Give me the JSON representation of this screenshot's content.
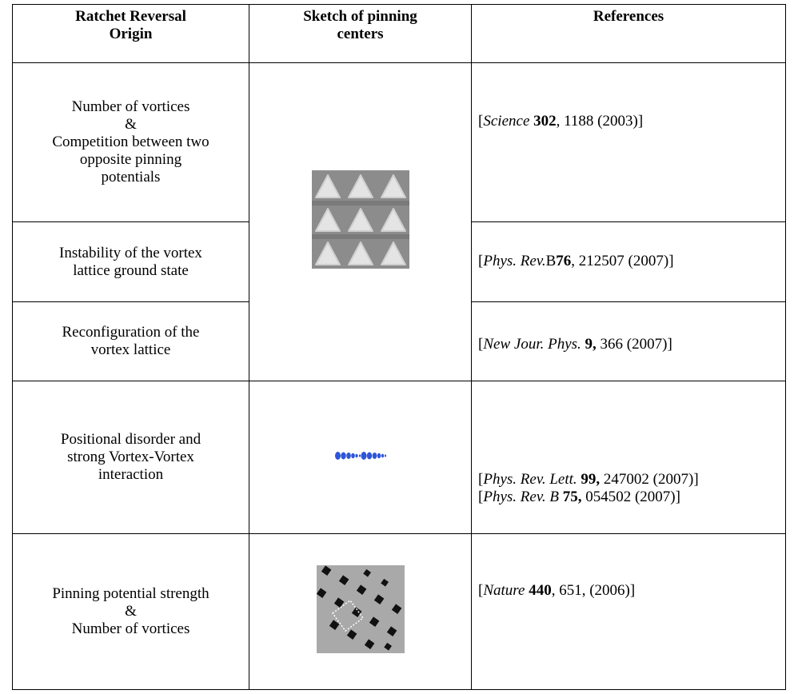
{
  "table": {
    "header": [
      [
        "Ratchet Reversal",
        "Origin"
      ],
      [
        "Sketch of pinning",
        "centers"
      ],
      [
        "References"
      ]
    ],
    "rows": [
      {
        "origin": [
          "Number of vortices",
          "&",
          "Competition between two",
          "opposite pinning",
          "potentials"
        ],
        "refs": [
          [
            {
              "text": "[",
              "style": "normal"
            },
            {
              "text": "Science",
              "style": "italic"
            },
            {
              "text": " 302",
              "style": "bold"
            },
            {
              "text": ", 1188 (2003)]",
              "style": "normal"
            }
          ]
        ]
      },
      {
        "origin": [
          "Instability of the vortex",
          "lattice ground state"
        ],
        "refs": [
          [
            {
              "text": "[",
              "style": "normal"
            },
            {
              "text": "Phys. Rev.",
              "style": "italic"
            },
            {
              "text": "B",
              "style": "normal"
            },
            {
              "text": "76",
              "style": "bold"
            },
            {
              "text": ", 212507 (2007)]",
              "style": "normal"
            }
          ]
        ]
      },
      {
        "origin": [
          "Reconfiguration of the",
          "vortex lattice"
        ],
        "refs": [
          [
            {
              "text": "[",
              "style": "normal"
            },
            {
              "text": "New Jour. Phys.",
              "style": "italic"
            },
            {
              "text": "  9,",
              "style": "bold"
            },
            {
              "text": " 366 (2007)]",
              "style": "normal"
            }
          ]
        ]
      },
      {
        "origin": [
          "Positional disorder and",
          "strong Vortex-Vortex",
          "interaction"
        ],
        "refs": [
          [
            {
              "text": "[",
              "style": "normal"
            },
            {
              "text": "Phys. Rev. Lett.",
              "style": "italic"
            },
            {
              "text": " 99,",
              "style": "bold"
            },
            {
              "text": " 247002 (2007)]",
              "style": "normal"
            }
          ],
          [
            {
              "text": "[",
              "style": "normal"
            },
            {
              "text": "Phys. Rev. B",
              "style": "italic"
            },
            {
              "text": " 75,",
              "style": "bold"
            },
            {
              "text": " 054502 (2007)]",
              "style": "normal"
            }
          ]
        ]
      },
      {
        "origin": [
          "Pinning potential strength",
          "&",
          "Number of vortices"
        ],
        "refs": [
          [
            {
              "text": "[",
              "style": "normal"
            },
            {
              "text": "Nature",
              "style": "italic"
            },
            {
              "text": " 440",
              "style": "bold"
            },
            {
              "text": ", 651, (2006)]",
              "style": "normal"
            }
          ]
        ]
      }
    ]
  }
}
